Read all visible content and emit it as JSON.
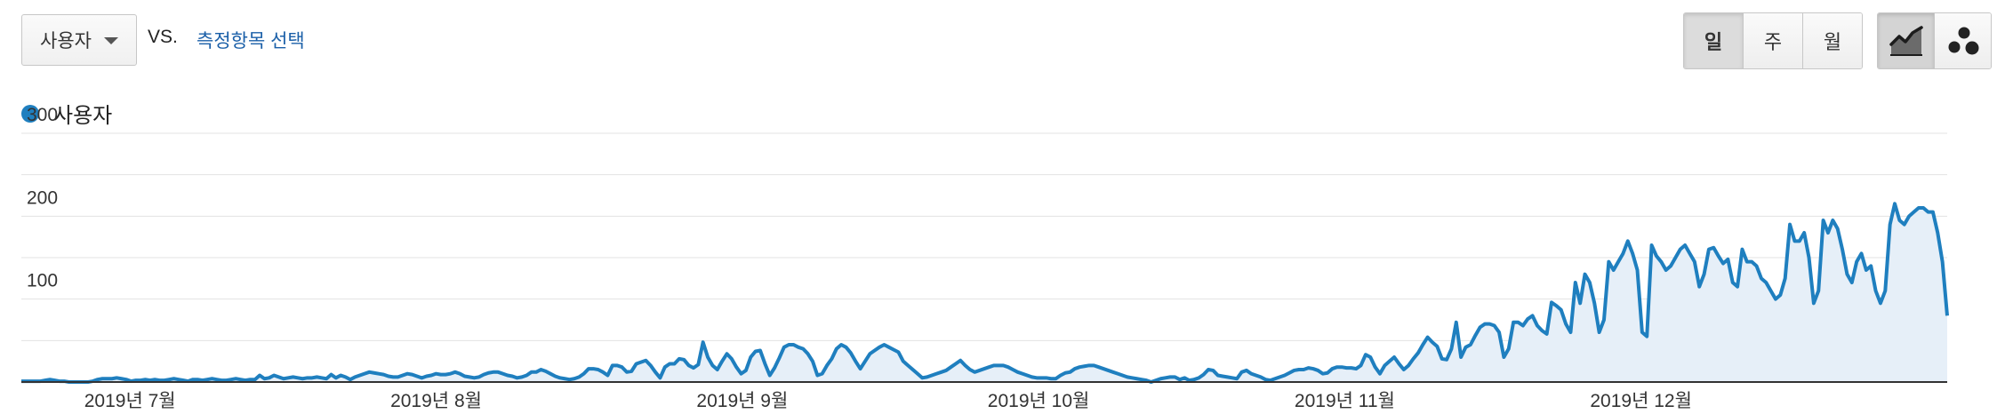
{
  "toolbar": {
    "metric_select": {
      "value": "사용자",
      "icon": "caret-down-icon"
    },
    "vs_label": "VS.",
    "compare_link": "측정항목 선택",
    "period_buttons": [
      {
        "label": "일",
        "active": true
      },
      {
        "label": "주",
        "active": false
      },
      {
        "label": "월",
        "active": false
      }
    ],
    "viz_buttons": [
      {
        "icon": "line-chart-icon",
        "active": true
      },
      {
        "icon": "motion-chart-icon",
        "active": false
      }
    ]
  },
  "colors": {
    "series": "#1f7fbf",
    "fill": "#e6eff8",
    "grid": "#e3e3e3",
    "axis": "#333333"
  },
  "chart_data": {
    "type": "area",
    "series": [
      {
        "name": "사용자",
        "values": [
          1,
          1,
          1,
          1,
          1,
          2,
          3,
          2,
          1,
          1,
          0,
          0,
          0,
          0,
          0,
          1,
          3,
          4,
          4,
          4,
          5,
          4,
          3,
          1,
          2,
          2,
          3,
          2,
          3,
          2,
          2,
          3,
          4,
          3,
          2,
          1,
          3,
          3,
          2,
          3,
          4,
          3,
          2,
          2,
          3,
          4,
          3,
          2,
          3,
          3,
          8,
          4,
          5,
          8,
          6,
          4,
          5,
          6,
          5,
          4,
          5,
          5,
          6,
          5,
          4,
          9,
          5,
          8,
          6,
          3,
          6,
          8,
          10,
          12,
          11,
          10,
          9,
          7,
          6,
          6,
          8,
          10,
          9,
          7,
          5,
          7,
          8,
          10,
          9,
          9,
          10,
          12,
          10,
          7,
          6,
          5,
          6,
          9,
          11,
          12,
          12,
          10,
          8,
          7,
          5,
          6,
          8,
          12,
          12,
          15,
          13,
          10,
          7,
          5,
          4,
          3,
          4,
          6,
          10,
          16,
          16,
          15,
          12,
          8,
          20,
          20,
          18,
          12,
          13,
          22,
          24,
          26,
          20,
          12,
          5,
          18,
          22,
          22,
          28,
          27,
          20,
          17,
          21,
          48,
          30,
          20,
          15,
          25,
          34,
          28,
          18,
          10,
          14,
          30,
          37,
          38,
          22,
          8,
          17,
          29,
          42,
          45,
          45,
          42,
          40,
          34,
          25,
          8,
          10,
          20,
          28,
          40,
          45,
          42,
          35,
          25,
          16,
          25,
          34,
          38,
          42,
          45,
          42,
          39,
          36,
          25,
          20,
          15,
          10,
          5,
          6,
          8,
          10,
          12,
          14,
          18,
          22,
          26,
          20,
          15,
          12,
          14,
          16,
          18,
          20,
          20,
          20,
          18,
          15,
          12,
          10,
          8,
          6,
          5,
          5,
          5,
          4,
          4,
          8,
          11,
          12,
          16,
          18,
          19,
          20,
          20,
          18,
          16,
          14,
          12,
          10,
          8,
          6,
          5,
          4,
          3,
          2,
          0,
          2,
          4,
          5,
          6,
          6,
          3,
          5,
          2,
          3,
          5,
          9,
          15,
          14,
          8,
          7,
          6,
          5,
          4,
          12,
          14,
          10,
          8,
          6,
          3,
          2,
          4,
          6,
          8,
          11,
          14,
          15,
          15,
          17,
          16,
          14,
          10,
          11,
          16,
          18,
          18,
          17,
          17,
          16,
          20,
          33,
          30,
          18,
          10,
          20,
          25,
          30,
          22,
          15,
          20,
          28,
          35,
          45,
          54,
          48,
          43,
          28,
          27,
          40,
          72,
          30,
          42,
          45,
          56,
          66,
          70,
          70,
          68,
          60,
          30,
          40,
          72,
          72,
          68,
          76,
          80,
          68,
          62,
          58,
          96,
          92,
          87,
          70,
          60,
          120,
          95,
          130,
          120,
          95,
          60,
          75,
          145,
          135,
          145,
          155,
          170,
          155,
          135,
          60,
          55,
          165,
          152,
          145,
          135,
          140,
          150,
          160,
          165,
          155,
          145,
          115,
          130,
          160,
          162,
          152,
          143,
          148,
          120,
          115,
          160,
          145,
          145,
          140,
          125,
          120,
          110,
          100,
          105,
          125,
          190,
          170,
          170,
          180,
          150,
          95,
          110,
          195,
          180,
          195,
          185,
          160,
          130,
          120,
          145,
          155,
          135,
          140,
          110,
          95,
          110,
          190,
          215,
          195,
          190,
          200,
          205,
          210,
          210,
          205,
          205,
          180,
          145,
          80
        ]
      }
    ],
    "x_tick_labels": [
      "2019년 7월",
      "2019년 8월",
      "2019년 9월",
      "2019년 10월",
      "2019년 11월",
      "2019년 12월"
    ],
    "y_tick_labels": [
      "100",
      "200",
      "300"
    ],
    "ylim": [
      0,
      300
    ],
    "grid": true
  }
}
